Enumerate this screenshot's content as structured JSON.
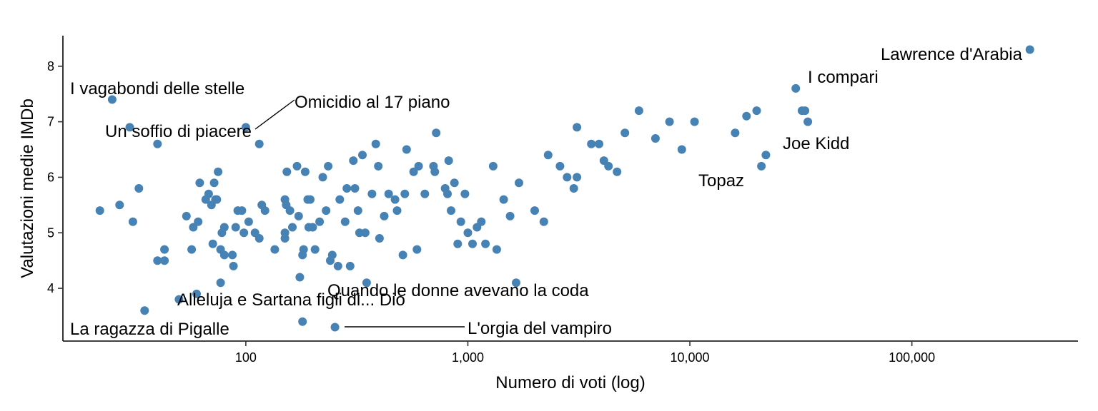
{
  "chart_data": {
    "type": "scatter",
    "xlabel": "Numero di voti (log)",
    "ylabel": "Valutazioni medie IMDb",
    "x_scale": "log10",
    "xlim": [
      15,
      560000
    ],
    "ylim": [
      3.05,
      8.55
    ],
    "x_ticks": [
      100,
      1000,
      10000,
      100000
    ],
    "x_tick_labels": [
      "100",
      "1,000",
      "10,000",
      "100,000"
    ],
    "y_ticks": [
      4,
      5,
      6,
      7,
      8
    ],
    "y_tick_labels": [
      "4",
      "5",
      "6",
      "7",
      "8"
    ],
    "point_color": "#4682b4",
    "grid": false,
    "legend": "none",
    "annotations": [
      {
        "text": "Lawrence d'Arabia",
        "x": 340000,
        "y": 8.3
      },
      {
        "text": "I compari",
        "x": 30000,
        "y": 7.6
      },
      {
        "text": "Joe Kidd",
        "x": 21000,
        "y": 6.2
      },
      {
        "text": "Topaz",
        "x": 20000,
        "y": 6.2
      },
      {
        "text": "I vagabondi delle stelle",
        "x": 25,
        "y": 7.4
      },
      {
        "text": "Omicidio al 17 piano",
        "x": 100,
        "y": 6.9
      },
      {
        "text": "Un soffio di piacere",
        "x": 30,
        "y": 6.9
      },
      {
        "text": "Quando le donne avevano la coda",
        "x": 740,
        "y": 3.8
      },
      {
        "text": "Alleluja e Sartana figli di... Dio",
        "x": 50,
        "y": 3.8
      },
      {
        "text": "La ragazza di Pigalle",
        "x": 35,
        "y": 3.6
      },
      {
        "text": "L'orgia del vampiro",
        "x": 250,
        "y": 3.3
      }
    ],
    "points": [
      [
        340000,
        8.3
      ],
      [
        30000,
        7.6
      ],
      [
        25,
        7.4
      ],
      [
        30,
        6.9
      ],
      [
        100,
        6.9
      ],
      [
        40,
        6.6
      ],
      [
        115,
        6.6
      ],
      [
        33,
        5.8
      ],
      [
        22,
        5.4
      ],
      [
        27,
        5.5
      ],
      [
        31,
        5.2
      ],
      [
        40,
        4.5
      ],
      [
        43,
        4.5
      ],
      [
        43,
        4.7
      ],
      [
        35,
        3.6
      ],
      [
        50,
        3.8
      ],
      [
        54,
        5.3
      ],
      [
        57,
        4.7
      ],
      [
        58,
        5.1
      ],
      [
        60,
        3.9
      ],
      [
        61,
        5.2
      ],
      [
        62,
        5.9
      ],
      [
        66,
        5.6
      ],
      [
        68,
        5.7
      ],
      [
        70,
        5.5
      ],
      [
        71,
        4.8
      ],
      [
        72,
        5.9
      ],
      [
        73,
        5.6
      ],
      [
        74,
        5.6
      ],
      [
        75,
        6.1
      ],
      [
        77,
        4.7
      ],
      [
        77,
        4.1
      ],
      [
        78,
        5.0
      ],
      [
        80,
        4.6
      ],
      [
        80,
        5.1
      ],
      [
        87,
        4.6
      ],
      [
        88,
        4.4
      ],
      [
        90,
        5.1
      ],
      [
        92,
        5.4
      ],
      [
        96,
        5.4
      ],
      [
        98,
        5.0
      ],
      [
        103,
        5.2
      ],
      [
        110,
        5.0
      ],
      [
        115,
        4.9
      ],
      [
        118,
        5.5
      ],
      [
        122,
        5.4
      ],
      [
        135,
        4.7
      ],
      [
        150,
        5.0
      ],
      [
        150,
        4.9
      ],
      [
        150,
        5.6
      ],
      [
        152,
        5.5
      ],
      [
        153,
        6.1
      ],
      [
        158,
        5.4
      ],
      [
        162,
        5.1
      ],
      [
        170,
        6.2
      ],
      [
        173,
        5.3
      ],
      [
        175,
        4.2
      ],
      [
        180,
        3.4
      ],
      [
        180,
        4.6
      ],
      [
        182,
        4.7
      ],
      [
        185,
        6.1
      ],
      [
        190,
        5.6
      ],
      [
        192,
        5.1
      ],
      [
        195,
        5.6
      ],
      [
        200,
        5.1
      ],
      [
        205,
        4.7
      ],
      [
        215,
        5.2
      ],
      [
        222,
        6.0
      ],
      [
        230,
        5.4
      ],
      [
        235,
        6.2
      ],
      [
        240,
        4.5
      ],
      [
        245,
        4.6
      ],
      [
        252,
        3.3
      ],
      [
        260,
        4.4
      ],
      [
        265,
        5.6
      ],
      [
        280,
        5.2
      ],
      [
        285,
        5.8
      ],
      [
        295,
        4.4
      ],
      [
        305,
        6.3
      ],
      [
        310,
        5.8
      ],
      [
        320,
        5.4
      ],
      [
        325,
        5.0
      ],
      [
        335,
        6.4
      ],
      [
        345,
        5.0
      ],
      [
        350,
        4.1
      ],
      [
        370,
        5.7
      ],
      [
        385,
        6.6
      ],
      [
        395,
        6.2
      ],
      [
        400,
        4.9
      ],
      [
        420,
        5.3
      ],
      [
        440,
        5.7
      ],
      [
        470,
        5.6
      ],
      [
        480,
        5.4
      ],
      [
        510,
        4.6
      ],
      [
        520,
        5.7
      ],
      [
        530,
        6.5
      ],
      [
        570,
        6.1
      ],
      [
        590,
        4.7
      ],
      [
        600,
        6.2
      ],
      [
        640,
        5.7
      ],
      [
        700,
        6.2
      ],
      [
        710,
        6.1
      ],
      [
        720,
        6.8
      ],
      [
        790,
        5.8
      ],
      [
        810,
        5.7
      ],
      [
        820,
        6.3
      ],
      [
        840,
        5.4
      ],
      [
        870,
        5.9
      ],
      [
        900,
        4.8
      ],
      [
        930,
        5.2
      ],
      [
        970,
        5.7
      ],
      [
        1000,
        5.0
      ],
      [
        1050,
        4.8
      ],
      [
        1100,
        5.1
      ],
      [
        1150,
        5.2
      ],
      [
        1200,
        4.8
      ],
      [
        1300,
        6.2
      ],
      [
        1350,
        4.7
      ],
      [
        1450,
        5.6
      ],
      [
        1550,
        5.3
      ],
      [
        1650,
        4.1
      ],
      [
        1700,
        5.9
      ],
      [
        2000,
        5.4
      ],
      [
        2200,
        5.2
      ],
      [
        2300,
        6.4
      ],
      [
        2600,
        6.2
      ],
      [
        2800,
        6.0
      ],
      [
        3000,
        5.8
      ],
      [
        3100,
        6.0
      ],
      [
        3100,
        6.9
      ],
      [
        3600,
        6.6
      ],
      [
        3900,
        6.6
      ],
      [
        4100,
        6.3
      ],
      [
        4300,
        6.2
      ],
      [
        4700,
        6.1
      ],
      [
        5100,
        6.8
      ],
      [
        5900,
        7.2
      ],
      [
        7000,
        6.7
      ],
      [
        8100,
        7.0
      ],
      [
        9200,
        6.5
      ],
      [
        10500,
        7.0
      ],
      [
        16000,
        6.8
      ],
      [
        18000,
        7.1
      ],
      [
        20000,
        7.2
      ],
      [
        21000,
        6.2
      ],
      [
        22000,
        6.4
      ],
      [
        32000,
        7.2
      ],
      [
        33000,
        7.2
      ],
      [
        34000,
        7.0
      ]
    ]
  }
}
